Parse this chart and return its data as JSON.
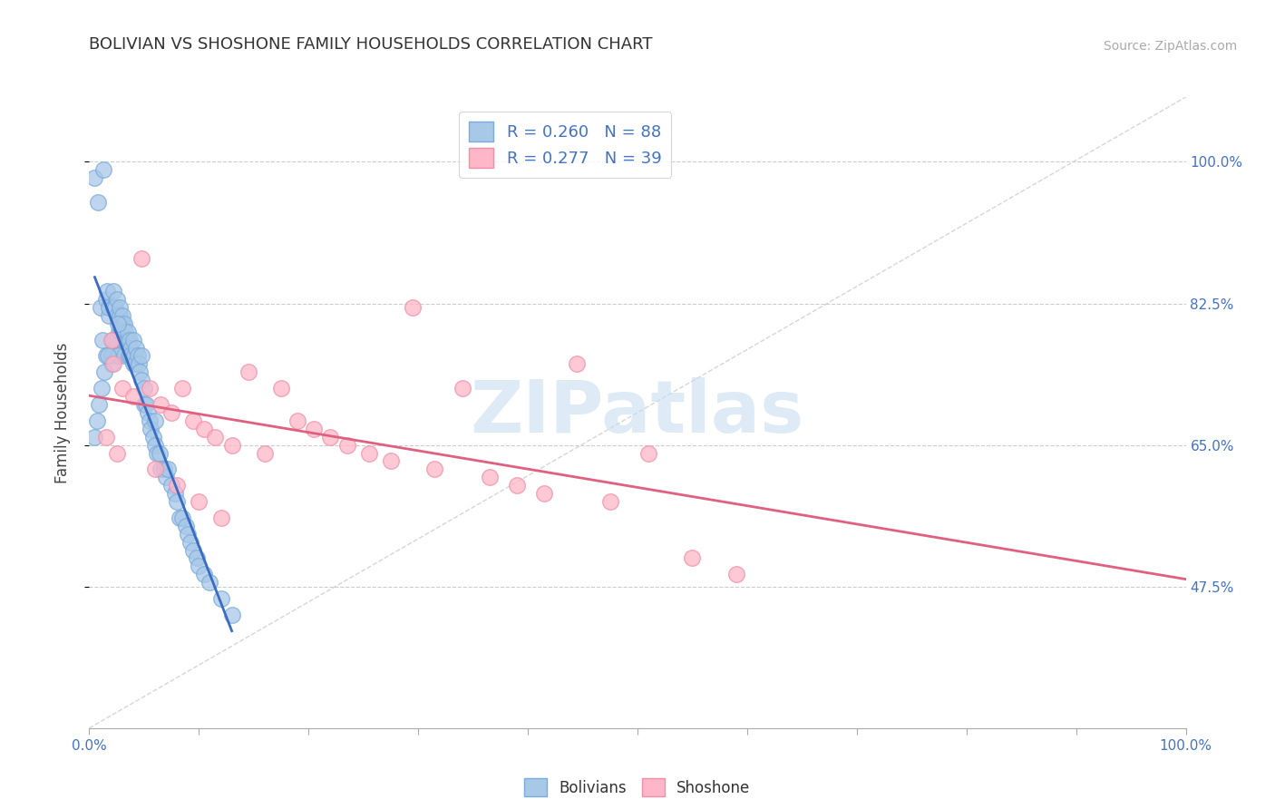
{
  "title": "BOLIVIAN VS SHOSHONE FAMILY HOUSEHOLDS CORRELATION CHART",
  "source": "Source: ZipAtlas.com",
  "ylabel": "Family Households",
  "bolivian_R": 0.26,
  "bolivian_N": 88,
  "shoshone_R": 0.277,
  "shoshone_N": 39,
  "bolivian_color": "#A8C8E8",
  "shoshone_color": "#FFB6C8",
  "bolivian_edge_color": "#7AABDA",
  "shoshone_edge_color": "#F090A8",
  "bolivian_line_color": "#3A6CC4",
  "shoshone_line_color": "#E06080",
  "diagonal_color": "#CCCCCC",
  "grid_color": "#CCCCCC",
  "legend_label1": "Bolivians",
  "legend_label2": "Shoshone",
  "zipAtlas_color": "#C8DCF0",
  "right_tick_color": "#4472C4",
  "ytick_positions": [
    0.475,
    0.65,
    0.825,
    1.0
  ],
  "ytick_labels": [
    "47.5%",
    "65.0%",
    "82.5%",
    "100.0%"
  ],
  "bolivian_x": [
    0.005,
    0.008,
    0.01,
    0.012,
    0.013,
    0.015,
    0.015,
    0.016,
    0.018,
    0.018,
    0.02,
    0.02,
    0.022,
    0.022,
    0.022,
    0.022,
    0.023,
    0.024,
    0.025,
    0.025,
    0.025,
    0.026,
    0.027,
    0.028,
    0.028,
    0.029,
    0.03,
    0.03,
    0.03,
    0.031,
    0.032,
    0.032,
    0.033,
    0.034,
    0.035,
    0.035,
    0.036,
    0.037,
    0.038,
    0.038,
    0.04,
    0.04,
    0.041,
    0.042,
    0.043,
    0.044,
    0.045,
    0.046,
    0.048,
    0.048,
    0.05,
    0.05,
    0.052,
    0.053,
    0.055,
    0.056,
    0.058,
    0.06,
    0.06,
    0.062,
    0.064,
    0.065,
    0.068,
    0.07,
    0.072,
    0.075,
    0.078,
    0.08,
    0.082,
    0.085,
    0.088,
    0.09,
    0.092,
    0.095,
    0.098,
    0.1,
    0.105,
    0.11,
    0.12,
    0.13,
    0.005,
    0.007,
    0.009,
    0.011,
    0.014,
    0.017,
    0.021,
    0.026
  ],
  "bolivian_y": [
    0.98,
    0.95,
    0.82,
    0.78,
    0.99,
    0.76,
    0.83,
    0.84,
    0.81,
    0.82,
    0.76,
    0.75,
    0.82,
    0.78,
    0.82,
    0.84,
    0.78,
    0.82,
    0.78,
    0.81,
    0.83,
    0.76,
    0.79,
    0.81,
    0.82,
    0.79,
    0.79,
    0.8,
    0.81,
    0.78,
    0.76,
    0.8,
    0.79,
    0.78,
    0.78,
    0.79,
    0.76,
    0.78,
    0.77,
    0.76,
    0.75,
    0.78,
    0.76,
    0.75,
    0.77,
    0.76,
    0.75,
    0.74,
    0.73,
    0.76,
    0.7,
    0.72,
    0.7,
    0.69,
    0.68,
    0.67,
    0.66,
    0.65,
    0.68,
    0.64,
    0.64,
    0.62,
    0.62,
    0.61,
    0.62,
    0.6,
    0.59,
    0.58,
    0.56,
    0.56,
    0.55,
    0.54,
    0.53,
    0.52,
    0.51,
    0.5,
    0.49,
    0.48,
    0.46,
    0.44,
    0.66,
    0.68,
    0.7,
    0.72,
    0.74,
    0.76,
    0.78,
    0.8
  ],
  "shoshone_x": [
    0.02,
    0.022,
    0.03,
    0.04,
    0.048,
    0.055,
    0.065,
    0.075,
    0.085,
    0.095,
    0.105,
    0.115,
    0.13,
    0.145,
    0.16,
    0.175,
    0.19,
    0.205,
    0.22,
    0.235,
    0.255,
    0.275,
    0.295,
    0.315,
    0.34,
    0.365,
    0.39,
    0.415,
    0.445,
    0.475,
    0.51,
    0.55,
    0.59,
    0.015,
    0.025,
    0.06,
    0.08,
    0.1,
    0.12
  ],
  "shoshone_y": [
    0.78,
    0.75,
    0.72,
    0.71,
    0.88,
    0.72,
    0.7,
    0.69,
    0.72,
    0.68,
    0.67,
    0.66,
    0.65,
    0.74,
    0.64,
    0.72,
    0.68,
    0.67,
    0.66,
    0.65,
    0.64,
    0.63,
    0.82,
    0.62,
    0.72,
    0.61,
    0.6,
    0.59,
    0.75,
    0.58,
    0.64,
    0.51,
    0.49,
    0.66,
    0.64,
    0.62,
    0.6,
    0.58,
    0.56
  ]
}
